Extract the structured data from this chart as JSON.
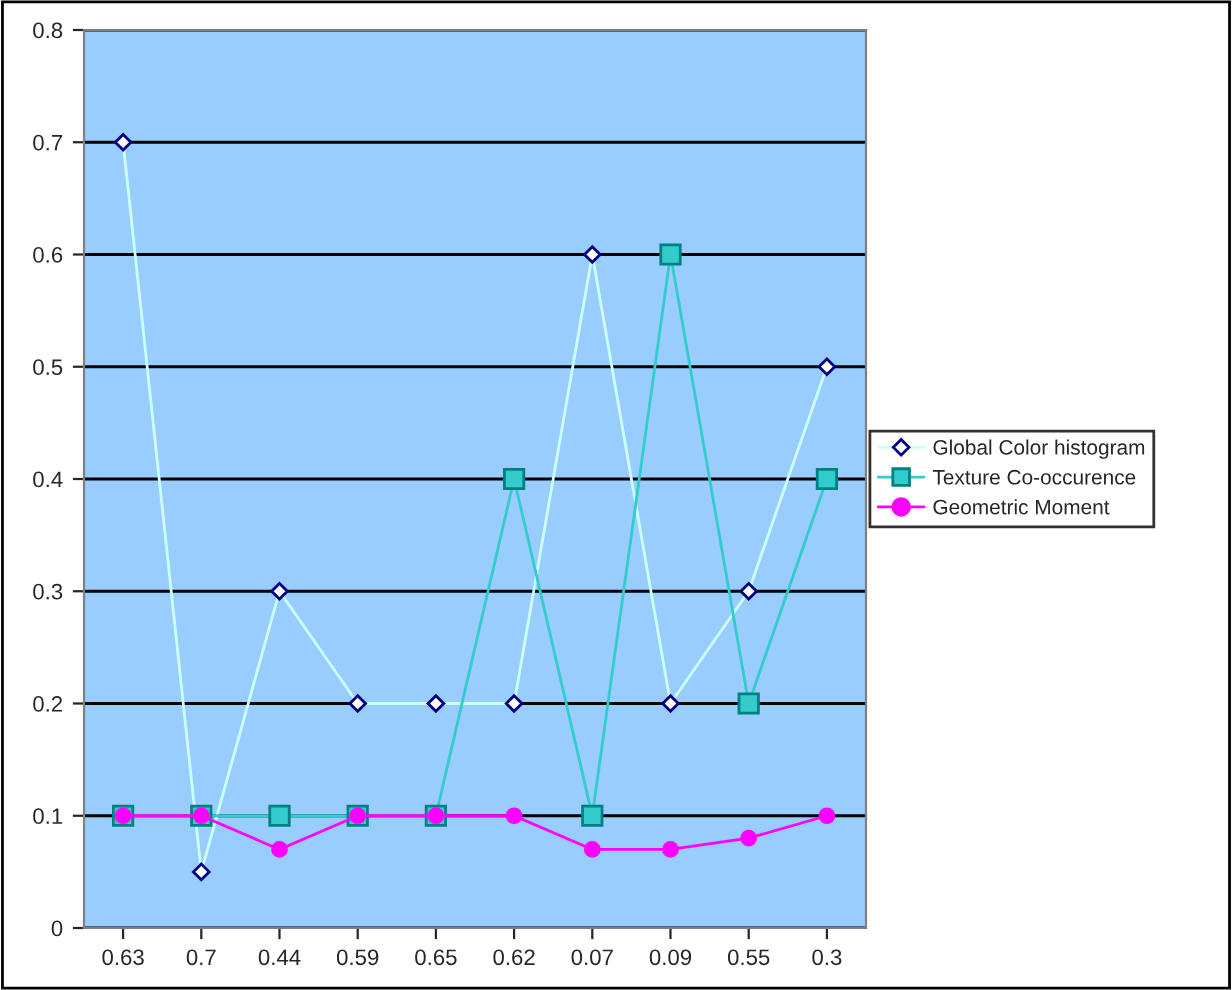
{
  "chart_data": {
    "type": "line",
    "categories": [
      "0.63",
      "0.7",
      "0.44",
      "0.59",
      "0.65",
      "0.62",
      "0.07",
      "0.09",
      "0.55",
      "0.3"
    ],
    "series": [
      {
        "name": "Global Color histogram",
        "color": "#ccffff",
        "marker": "diamond",
        "values": [
          0.7,
          0.05,
          0.3,
          0.2,
          0.2,
          0.2,
          0.6,
          0.2,
          0.3,
          0.5
        ]
      },
      {
        "name": "Texture Co-occurence",
        "color": "#33cccc",
        "marker": "square",
        "values": [
          0.1,
          0.1,
          0.1,
          0.1,
          0.1,
          0.4,
          0.1,
          0.6,
          0.2,
          0.4
        ]
      },
      {
        "name": "Geometric Moment",
        "color": "#ff00ff",
        "marker": "circle",
        "values": [
          0.1,
          0.1,
          0.07,
          0.1,
          0.1,
          0.1,
          0.07,
          0.07,
          0.08,
          0.1
        ]
      }
    ],
    "ylim": [
      0,
      0.8
    ],
    "yticks": [
      0,
      0.1,
      0.2,
      0.3,
      0.4,
      0.5,
      0.6,
      0.7,
      0.8
    ],
    "grid": "y",
    "legend": "right",
    "line_style": "solid"
  }
}
